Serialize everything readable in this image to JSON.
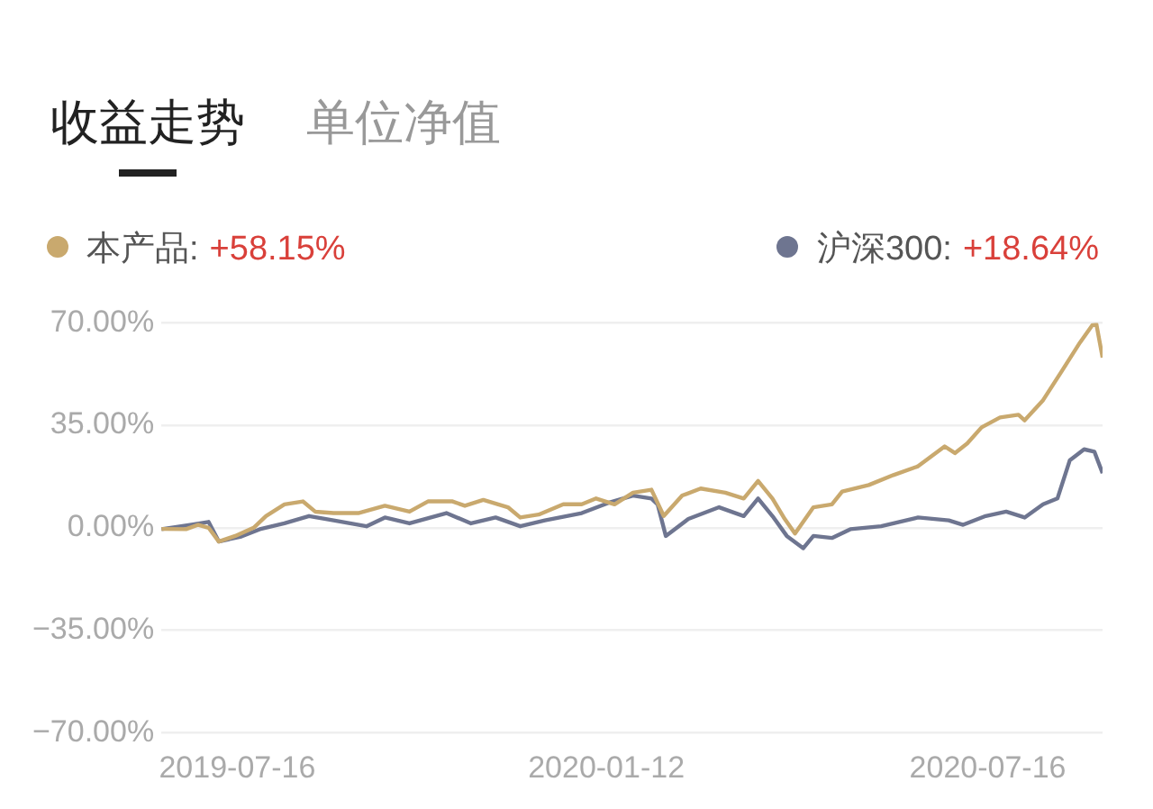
{
  "chart_data": {
    "type": "line",
    "title": "收益走势",
    "subtitle": "单位净值",
    "xlim": [
      "2019-06-09",
      "2020-09-10"
    ],
    "xticks": [
      "2019-07-16",
      "2020-01-12",
      "2020-07-16"
    ],
    "ylim": [
      -70,
      70
    ],
    "yticks": [
      {
        "value": -70,
        "label": "−70.00%"
      },
      {
        "value": -35,
        "label": "−35.00%"
      },
      {
        "value": 0,
        "label": "0.00%"
      },
      {
        "value": 35,
        "label": "35.00%"
      },
      {
        "value": 70,
        "label": "70.00%"
      }
    ],
    "grid": "y",
    "legend": "top",
    "marker": "none",
    "line_style": "solid",
    "annotations": [
      "+58.15%",
      "+18.64%"
    ],
    "series": [
      {
        "name": "本产品:",
        "color": "#c9a96e",
        "x": [
          "2019-06-09",
          "2019-06-21",
          "2019-06-27",
          "2019-07-02",
          "2019-07-07",
          "2019-07-15",
          "2019-07-24",
          "2019-07-30",
          "2019-08-08",
          "2019-08-17",
          "2019-08-23",
          "2019-09-01",
          "2019-09-13",
          "2019-09-26",
          "2019-10-08",
          "2019-10-17",
          "2019-10-29",
          "2019-11-04",
          "2019-11-13",
          "2019-11-25",
          "2019-12-01",
          "2019-12-10",
          "2019-12-22",
          "2019-12-31",
          "2020-01-07",
          "2020-01-16",
          "2020-01-25",
          "2020-02-03",
          "2020-02-09",
          "2020-02-18",
          "2020-02-27",
          "2020-03-10",
          "2020-03-19",
          "2020-03-26",
          "2020-04-02",
          "2020-04-08",
          "2020-04-13",
          "2020-04-17",
          "2020-04-22",
          "2020-05-01",
          "2020-05-06",
          "2020-05-19",
          "2020-05-31",
          "2020-06-12",
          "2020-06-25",
          "2020-06-30",
          "2020-07-06",
          "2020-07-13",
          "2020-07-22",
          "2020-07-31",
          "2020-08-03",
          "2020-08-12",
          "2020-08-21",
          "2020-08-30",
          "2020-09-05",
          "2020-09-07",
          "2020-09-10"
        ],
        "values": [
          -0.4,
          -0.5,
          1,
          0,
          -4.7,
          -2.8,
          0,
          4,
          8,
          9,
          5.5,
          5,
          5,
          7.5,
          5.5,
          9,
          9,
          7.5,
          9.5,
          7,
          3.5,
          4.5,
          8,
          8,
          10,
          8,
          12,
          13,
          4,
          11,
          13.4,
          12,
          10,
          16,
          10,
          3,
          -2,
          2,
          7,
          8,
          12.4,
          14.6,
          18,
          21,
          27.8,
          25.5,
          28.8,
          34.3,
          37.7,
          38.6,
          36.7,
          43.6,
          53.4,
          63.3,
          69.2,
          69.5,
          58.15
        ]
      },
      {
        "name": "沪深300:",
        "color": "#6e7590",
        "x": [
          "2019-06-09",
          "2019-06-23",
          "2019-07-02",
          "2019-07-07",
          "2019-07-18",
          "2019-07-27",
          "2019-08-08",
          "2019-08-20",
          "2019-09-01",
          "2019-09-17",
          "2019-09-26",
          "2019-10-08",
          "2019-10-26",
          "2019-11-07",
          "2019-11-19",
          "2019-12-01",
          "2019-12-13",
          "2019-12-31",
          "2020-01-13",
          "2020-01-25",
          "2020-02-03",
          "2020-02-06",
          "2020-02-10",
          "2020-02-21",
          "2020-03-07",
          "2020-03-19",
          "2020-03-26",
          "2020-04-02",
          "2020-04-09",
          "2020-04-17",
          "2020-04-22",
          "2020-05-01",
          "2020-05-10",
          "2020-05-25",
          "2020-06-12",
          "2020-06-27",
          "2020-07-04",
          "2020-07-15",
          "2020-07-25",
          "2020-08-03",
          "2020-08-12",
          "2020-08-19",
          "2020-08-25",
          "2020-09-01",
          "2020-09-06",
          "2020-09-10"
        ],
        "values": [
          -0.5,
          1,
          2,
          -4.7,
          -3,
          -0.5,
          1.5,
          4,
          2.5,
          0.5,
          3.5,
          1.5,
          5,
          1.5,
          3.5,
          0.5,
          2.5,
          5,
          8.5,
          11,
          10,
          8,
          -2.8,
          3,
          7,
          4,
          10,
          4,
          -2.8,
          -7,
          -2.8,
          -3.5,
          -0.5,
          0.5,
          3.5,
          2.5,
          1,
          4,
          5.5,
          3.5,
          8,
          10,
          23,
          26.8,
          26,
          18.64
        ]
      }
    ]
  }
}
